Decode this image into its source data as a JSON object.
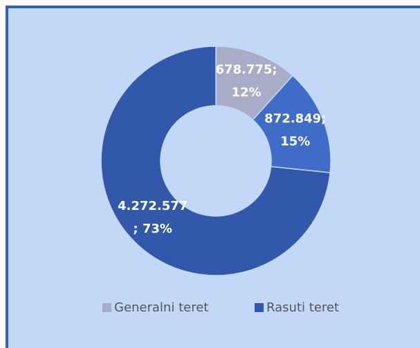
{
  "chart_data": {
    "type": "donut",
    "categories": [
      "Generalni teret",
      null,
      "Rasuti teret"
    ],
    "values": [
      678775,
      872849,
      4272577
    ],
    "value_labels": [
      [
        "678.775;",
        "12%"
      ],
      [
        "872.849;",
        "15%"
      ],
      [
        "4.272.577",
        "; 73%"
      ]
    ],
    "colors": [
      "#a9acc6",
      "#3e6cc6",
      "#3158aa"
    ],
    "legend": "bottom"
  }
}
